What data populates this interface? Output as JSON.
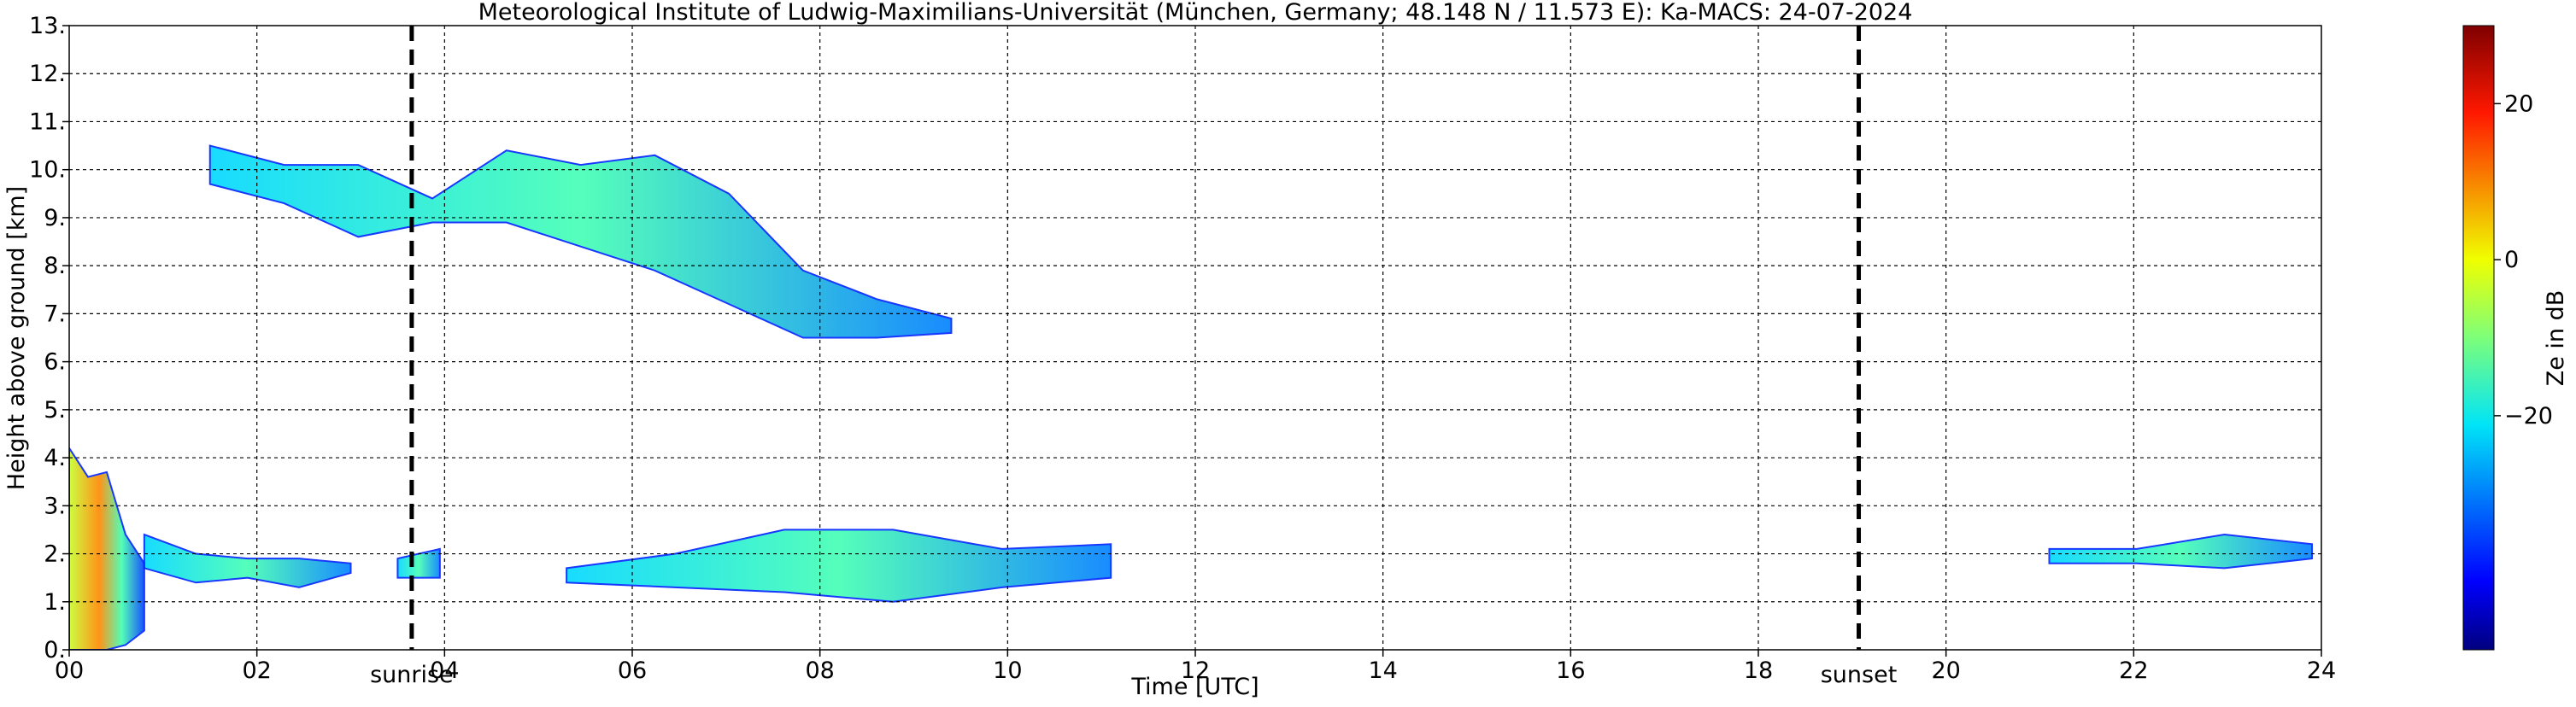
{
  "chart_data": {
    "type": "heatmap",
    "title": "Meteorological Institute of Ludwig-Maximilians-Universität (München, Germany; 48.148 N / 11.573 E):    Ka-MACS: 24-07-2024",
    "xlabel": "Time [UTC]",
    "ylabel": "Height above ground [km]",
    "xlim": [
      0,
      24
    ],
    "ylim": [
      0,
      13
    ],
    "x_ticks": [
      "00",
      "02",
      "04",
      "06",
      "08",
      "10",
      "12",
      "14",
      "16",
      "18",
      "20",
      "22",
      "24"
    ],
    "y_ticks": [
      "0.",
      "1.",
      "2.",
      "3.",
      "4.",
      "5.",
      "6.",
      "7.",
      "8.",
      "9.",
      "10.",
      "11.",
      "12.",
      "13."
    ],
    "grid": true,
    "colorbar": {
      "label": "Ze in dB",
      "range": [
        -50,
        30
      ],
      "ticks": [
        {
          "value": 20,
          "label": "20"
        },
        {
          "value": 0,
          "label": "0"
        },
        {
          "value": -20,
          "label": "−20"
        }
      ],
      "colormap": "jet"
    },
    "markers": [
      {
        "name": "sunrise",
        "x": 3.65,
        "label": "sunrise"
      },
      {
        "name": "sunset",
        "x": 19.07,
        "label": "sunset"
      }
    ],
    "echo_regions": [
      {
        "name": "high-cirrus",
        "x_start": 1.5,
        "x_end": 9.4,
        "base_km": [
          9.7,
          9.3,
          8.6,
          8.9,
          8.9,
          8.4,
          7.9,
          7.2,
          6.5,
          6.5,
          6.6
        ],
        "top_km": [
          10.5,
          10.1,
          10.1,
          9.4,
          10.4,
          10.1,
          10.3,
          9.5,
          7.9,
          7.3,
          6.9
        ],
        "peak_dbz": -5
      },
      {
        "name": "low-precip-early",
        "x_start": 0.0,
        "x_end": 0.8,
        "base_km": [
          0.0,
          0.0,
          0.0,
          0.1,
          0.4
        ],
        "top_km": [
          4.2,
          3.6,
          3.7,
          2.4,
          1.8
        ],
        "peak_dbz": 15
      },
      {
        "name": "low-layer-morning",
        "x_start": 0.8,
        "x_end": 3.0,
        "base_km": [
          1.7,
          1.4,
          1.5,
          1.3,
          1.6
        ],
        "top_km": [
          2.4,
          2.0,
          1.9,
          1.9,
          1.8
        ],
        "peak_dbz": -15
      },
      {
        "name": "low-patches-sunrise",
        "x_start": 3.5,
        "x_end": 3.95,
        "base_km": [
          1.5,
          1.5
        ],
        "top_km": [
          1.9,
          2.1
        ],
        "peak_dbz": -15
      },
      {
        "name": "low-patches-midday",
        "x_start": 5.3,
        "x_end": 11.1,
        "base_km": [
          1.4,
          1.3,
          1.2,
          1.0,
          1.3,
          1.5
        ],
        "top_km": [
          1.7,
          2.0,
          2.5,
          2.5,
          2.1,
          2.2
        ],
        "peak_dbz": -20
      },
      {
        "name": "low-evening-layer",
        "x_start": 21.1,
        "x_end": 23.9,
        "base_km": [
          1.8,
          1.8,
          1.7,
          1.9
        ],
        "top_km": [
          2.1,
          2.1,
          2.4,
          2.2
        ],
        "peak_dbz": -30
      }
    ]
  }
}
